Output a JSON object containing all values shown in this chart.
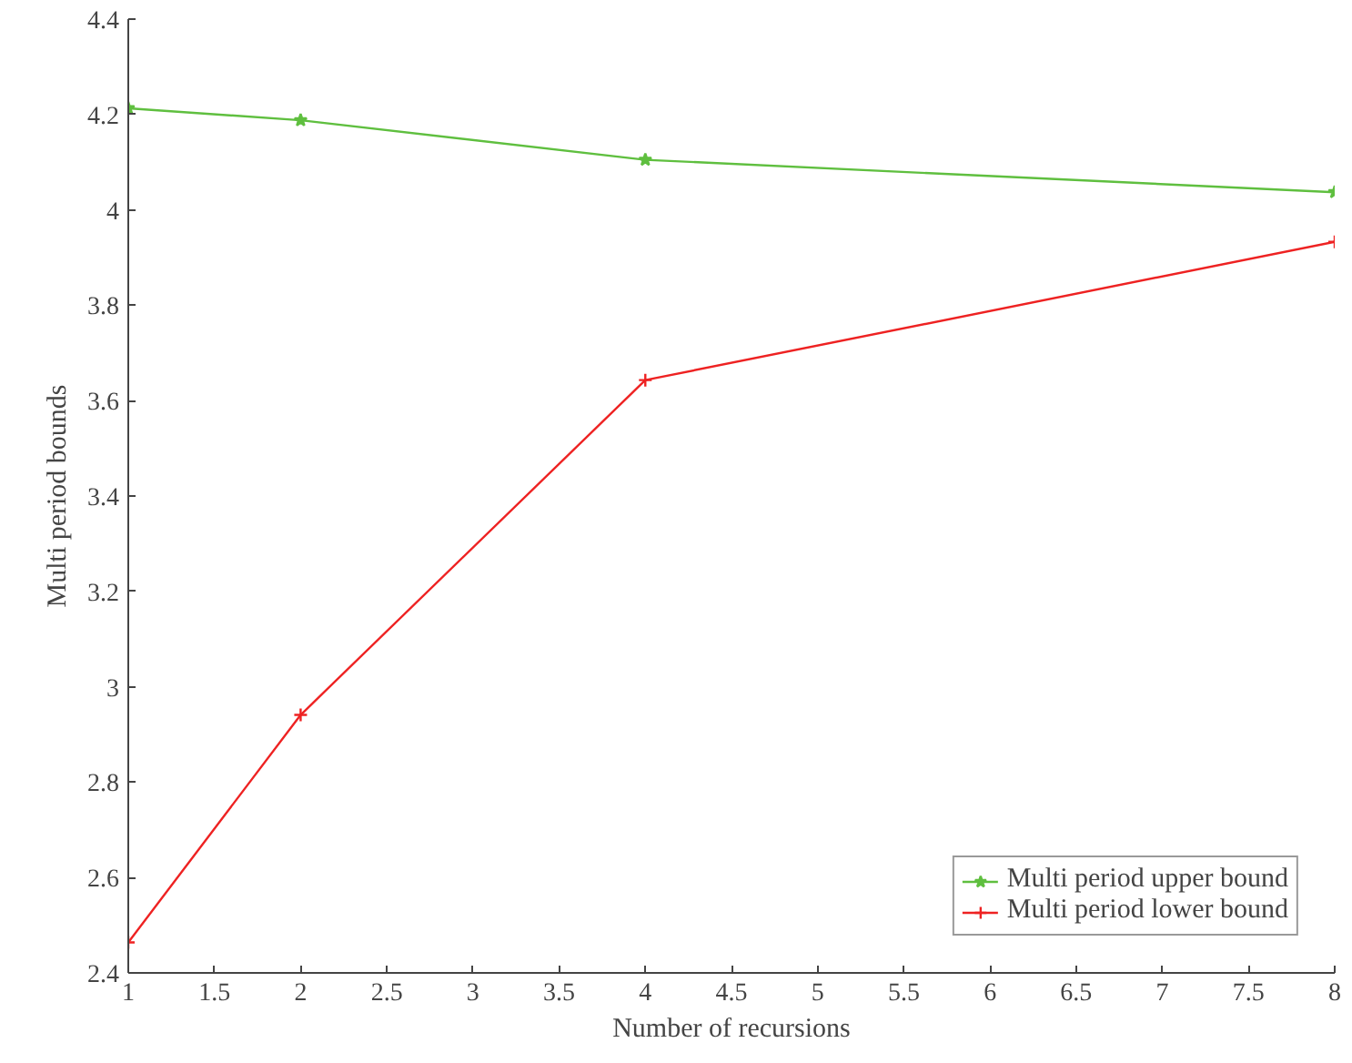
{
  "chart_data": {
    "type": "line",
    "xlabel": "Number of recursions",
    "ylabel": "Multi period bounds",
    "x": [
      1,
      2,
      4,
      8
    ],
    "series": [
      {
        "name": "Multi period upper bound",
        "color": "#5fbf3f",
        "marker": "star",
        "values": [
          4.213,
          4.188,
          4.105,
          4.037
        ]
      },
      {
        "name": "Multi period lower bound",
        "color": "#ee2222",
        "marker": "cross",
        "values": [
          2.464,
          2.941,
          3.643,
          3.933
        ]
      }
    ],
    "xlim": [
      1,
      8
    ],
    "xticks": [
      1,
      1.5,
      2,
      2.5,
      3,
      3.5,
      4,
      4.5,
      5,
      5.5,
      6,
      6.5,
      7,
      7.5,
      8
    ],
    "ylim": [
      2.4,
      4.4
    ],
    "yticks": [
      2.4,
      2.6,
      2.8,
      3,
      3.2,
      3.4,
      3.6,
      3.8,
      4,
      4.2,
      4.4
    ],
    "grid": false,
    "legend": "bottom right",
    "line_style": "solid"
  }
}
